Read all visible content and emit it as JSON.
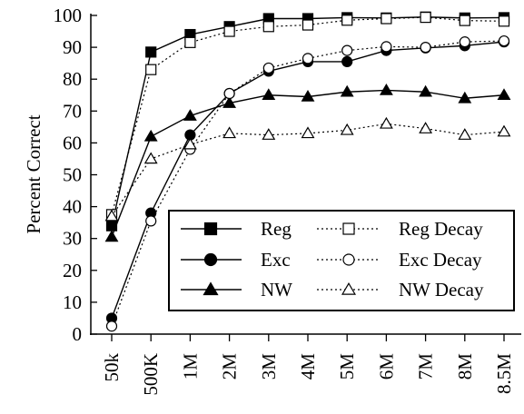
{
  "chart_data": {
    "type": "line",
    "title": "",
    "xlabel": "",
    "ylabel": "Percent Correct",
    "ylim": [
      0,
      100
    ],
    "yticks": [
      "0",
      "10",
      "20",
      "30",
      "40",
      "50",
      "60",
      "70",
      "80",
      "90",
      "100"
    ],
    "categories": [
      "50k",
      "500K",
      "1M",
      "2M",
      "3M",
      "4M",
      "5M",
      "6M",
      "7M",
      "8M",
      "8.5M"
    ],
    "grid": false,
    "legend_position": "bottom-right",
    "series": [
      {
        "name": "Reg",
        "marker": "square",
        "filled": true,
        "dash": "solid",
        "values": [
          34,
          88.5,
          94,
          96.5,
          99,
          99,
          99.3,
          99.2,
          99.5,
          99.2,
          99.3
        ]
      },
      {
        "name": "Exc",
        "marker": "circle",
        "filled": true,
        "dash": "solid",
        "values": [
          5,
          38,
          62.5,
          75.5,
          82.5,
          85.5,
          85.5,
          89,
          89.8,
          90.5,
          91.7
        ]
      },
      {
        "name": "NW",
        "marker": "triangle",
        "filled": true,
        "dash": "solid",
        "values": [
          30.5,
          62,
          68.5,
          72.5,
          75,
          74.5,
          76,
          76.5,
          76,
          74,
          75
        ]
      },
      {
        "name": "Reg Decay",
        "marker": "square",
        "filled": false,
        "dash": "dotted",
        "values": [
          37.5,
          83,
          91.5,
          95,
          96.5,
          97,
          98.5,
          99,
          99.4,
          98.4,
          98.2
        ]
      },
      {
        "name": "Exc Decay",
        "marker": "circle",
        "filled": false,
        "dash": "dotted",
        "values": [
          2.5,
          35.5,
          58,
          75.5,
          83.5,
          86.5,
          89,
          90.2,
          90,
          91.7,
          92
        ]
      },
      {
        "name": "NW Decay",
        "marker": "triangle",
        "filled": false,
        "dash": "dotted",
        "values": [
          37,
          55,
          59.5,
          63,
          62.5,
          63,
          64,
          66,
          64.5,
          62.5,
          63.5
        ]
      }
    ]
  }
}
